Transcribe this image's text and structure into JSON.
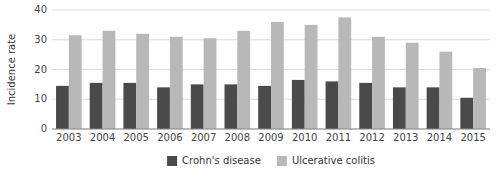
{
  "chart_data": {
    "type": "bar",
    "categories": [
      "2003",
      "2004",
      "2005",
      "2006",
      "2007",
      "2008",
      "2009",
      "2010",
      "2011",
      "2012",
      "2013",
      "2014",
      "2015"
    ],
    "series": [
      {
        "name": "Crohn's disease",
        "color": "#4a4a4a",
        "values": [
          14.5,
          15.5,
          15.5,
          14.0,
          15.0,
          15.0,
          14.5,
          16.5,
          16.0,
          15.5,
          14.0,
          14.0,
          10.5
        ]
      },
      {
        "name": "Ulcerative colitis",
        "color": "#b8b8b8",
        "values": [
          31.5,
          33.0,
          32.0,
          31.0,
          30.5,
          33.0,
          36.0,
          35.0,
          37.5,
          31.0,
          29.0,
          26.0,
          20.5
        ]
      }
    ],
    "ylabel": "Incidence rate",
    "ylim": [
      0,
      40
    ],
    "yticks": [
      0,
      10,
      20,
      30,
      40
    ],
    "grid": true,
    "legend": "bottom"
  }
}
